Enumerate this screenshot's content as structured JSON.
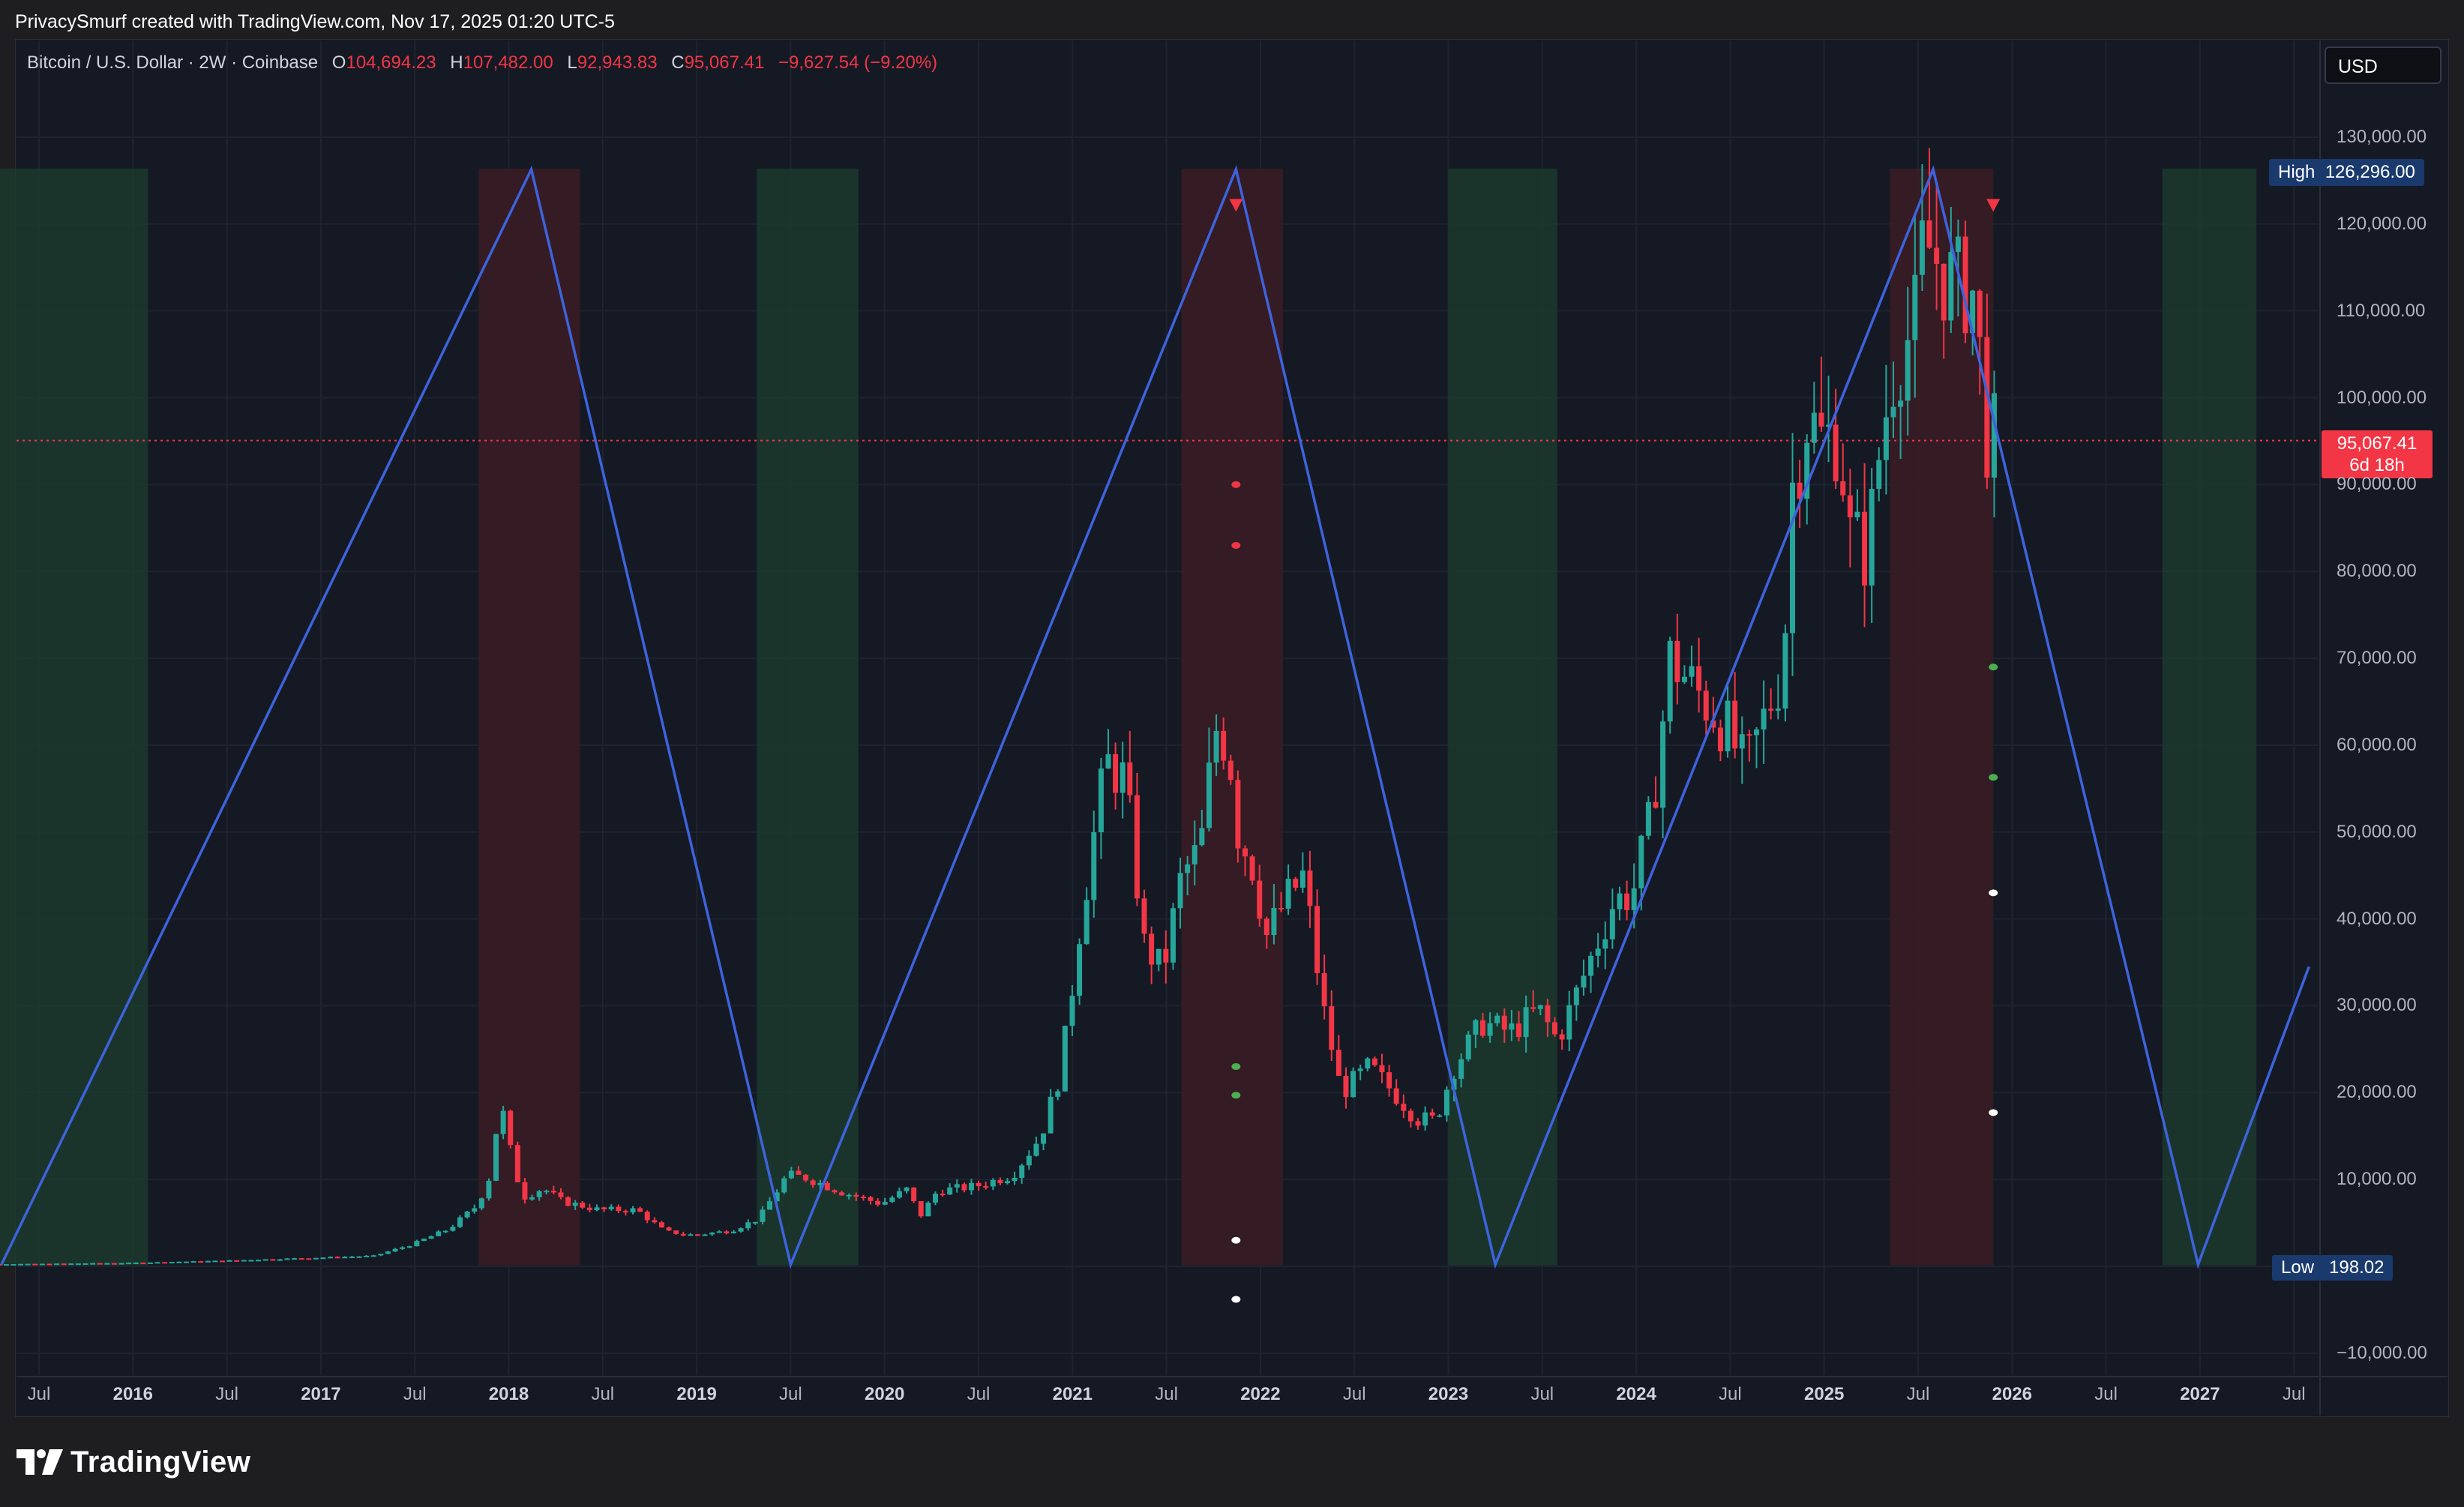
{
  "header": {
    "attribution": "PrivacySmurf created with TradingView.com, Nov 17, 2025 01:20 UTC-5"
  },
  "legend": {
    "symbol": "Bitcoin / U.S. Dollar · 2W · Coinbase",
    "open_key": "O",
    "open": "104,694.23",
    "high_key": "H",
    "high": "107,482.00",
    "low_key": "L",
    "low": "92,943.83",
    "close_key": "C",
    "close": "95,067.41",
    "change": "−9,627.54 (−9.20%)"
  },
  "currency_button": "USD",
  "tags": {
    "high_label": "High",
    "high_value": "126,296.00",
    "low_label": "Low",
    "low_value": "198.02",
    "price_value": "95,067.41",
    "countdown": "6d 18h"
  },
  "footer": {
    "brand": "TradingView"
  },
  "colors": {
    "up": "#26a69a",
    "down": "#f23645",
    "zigzag": "#3d63dd",
    "green_band": "#1b3a2e",
    "red_band": "#3a1c24",
    "background": "#151924"
  },
  "chart_data": {
    "type": "candlestick",
    "y_axis": {
      "range": [
        -10000,
        135000
      ],
      "ticks": [
        "130,000.00",
        "120,000.00",
        "110,000.00",
        "100,000.00",
        "90,000.00",
        "80,000.00",
        "70,000.00",
        "60,000.00",
        "50,000.00",
        "40,000.00",
        "30,000.00",
        "20,000.00",
        "10,000.00",
        "−10,000.00"
      ]
    },
    "x_axis": {
      "ticks": [
        {
          "label": "Jul",
          "t": 2015.5
        },
        {
          "label": "2016",
          "t": 2016.0,
          "year": true
        },
        {
          "label": "Jul",
          "t": 2016.5
        },
        {
          "label": "2017",
          "t": 2017.0,
          "year": true
        },
        {
          "label": "Jul",
          "t": 2017.5
        },
        {
          "label": "2018",
          "t": 2018.0,
          "year": true
        },
        {
          "label": "Jul",
          "t": 2018.5
        },
        {
          "label": "2019",
          "t": 2019.0,
          "year": true
        },
        {
          "label": "Jul",
          "t": 2019.5
        },
        {
          "label": "2020",
          "t": 2020.0,
          "year": true
        },
        {
          "label": "Jul",
          "t": 2020.5
        },
        {
          "label": "2021",
          "t": 2021.0,
          "year": true
        },
        {
          "label": "Jul",
          "t": 2021.5
        },
        {
          "label": "2022",
          "t": 2022.0,
          "year": true
        },
        {
          "label": "Jul",
          "t": 2022.5
        },
        {
          "label": "2023",
          "t": 2023.0,
          "year": true
        },
        {
          "label": "Jul",
          "t": 2023.5
        },
        {
          "label": "2024",
          "t": 2024.0,
          "year": true
        },
        {
          "label": "Jul",
          "t": 2024.5
        },
        {
          "label": "2025",
          "t": 2025.0,
          "year": true
        },
        {
          "label": "Jul",
          "t": 2025.5
        },
        {
          "label": "2026",
          "t": 2026.0,
          "year": true
        },
        {
          "label": "Jul",
          "t": 2026.5
        },
        {
          "label": "2027",
          "t": 2027.0,
          "year": true
        },
        {
          "label": "Jul",
          "t": 2027.5
        }
      ]
    },
    "bands": [
      {
        "kind": "green",
        "from": 2015.05,
        "to": 2016.08
      },
      {
        "kind": "red",
        "from": 2017.84,
        "to": 2018.38
      },
      {
        "kind": "green",
        "from": 2019.32,
        "to": 2019.86
      },
      {
        "kind": "red",
        "from": 2021.58,
        "to": 2022.12
      },
      {
        "kind": "green",
        "from": 2023.0,
        "to": 2023.58
      },
      {
        "kind": "red",
        "from": 2025.35,
        "to": 2025.9
      },
      {
        "kind": "green",
        "from": 2026.8,
        "to": 2027.3
      }
    ],
    "zigzag": [
      [
        2015.3,
        198
      ],
      [
        2018.12,
        126296
      ],
      [
        2019.5,
        198
      ],
      [
        2021.87,
        126296
      ],
      [
        2023.25,
        198
      ],
      [
        2025.58,
        126296
      ],
      [
        2026.99,
        198
      ],
      [
        2027.58,
        34500
      ]
    ],
    "markers": {
      "triangles": [
        [
          2021.87,
          122200
        ],
        [
          2025.9,
          122200
        ]
      ],
      "dots": [
        {
          "color": "#f23645",
          "t": 2021.87,
          "v": 90000
        },
        {
          "color": "#f23645",
          "t": 2021.87,
          "v": 83000
        },
        {
          "color": "#4caf50",
          "t": 2021.87,
          "v": 23000
        },
        {
          "color": "#4caf50",
          "t": 2021.87,
          "v": 19700
        },
        {
          "color": "#ffffff",
          "t": 2021.87,
          "v": 3000
        },
        {
          "color": "#ffffff",
          "t": 2021.87,
          "v": -3800
        },
        {
          "color": "#4caf50",
          "t": 2025.9,
          "v": 69000
        },
        {
          "color": "#4caf50",
          "t": 2025.9,
          "v": 56300
        },
        {
          "color": "#ffffff",
          "t": 2025.9,
          "v": 43000
        },
        {
          "color": "#ffffff",
          "t": 2025.9,
          "v": 17700
        }
      ]
    },
    "price_line": 95067.41,
    "price_anchors": [
      [
        2015.0,
        230
      ],
      [
        2015.5,
        280
      ],
      [
        2016.0,
        400
      ],
      [
        2016.5,
        650
      ],
      [
        2017.0,
        1000
      ],
      [
        2017.3,
        1200
      ],
      [
        2017.5,
        2500
      ],
      [
        2017.7,
        4300
      ],
      [
        2017.85,
        7000
      ],
      [
        2017.93,
        11000
      ],
      [
        2017.97,
        19500
      ],
      [
        2018.05,
        11000
      ],
      [
        2018.1,
        8000
      ],
      [
        2018.2,
        9000
      ],
      [
        2018.3,
        7500
      ],
      [
        2018.5,
        6500
      ],
      [
        2018.7,
        6500
      ],
      [
        2018.85,
        4000
      ],
      [
        2019.0,
        3600
      ],
      [
        2019.2,
        4100
      ],
      [
        2019.35,
        5500
      ],
      [
        2019.5,
        10500
      ],
      [
        2019.6,
        10200
      ],
      [
        2019.8,
        8500
      ],
      [
        2020.0,
        7200
      ],
      [
        2020.15,
        9000
      ],
      [
        2020.2,
        5500
      ],
      [
        2020.3,
        8700
      ],
      [
        2020.5,
        9200
      ],
      [
        2020.7,
        10500
      ],
      [
        2020.85,
        15000
      ],
      [
        2020.95,
        22000
      ],
      [
        2021.0,
        29000
      ],
      [
        2021.05,
        38000
      ],
      [
        2021.12,
        48000
      ],
      [
        2021.2,
        58000
      ],
      [
        2021.3,
        56000
      ],
      [
        2021.4,
        37000
      ],
      [
        2021.5,
        34000
      ],
      [
        2021.6,
        45000
      ],
      [
        2021.7,
        48000
      ],
      [
        2021.78,
        62000
      ],
      [
        2021.85,
        60000
      ],
      [
        2021.9,
        50000
      ],
      [
        2021.98,
        46000
      ],
      [
        2022.05,
        38000
      ],
      [
        2022.15,
        42000
      ],
      [
        2022.25,
        45000
      ],
      [
        2022.35,
        30000
      ],
      [
        2022.45,
        20000
      ],
      [
        2022.6,
        23000
      ],
      [
        2022.75,
        19500
      ],
      [
        2022.85,
        17000
      ],
      [
        2022.95,
        16800
      ],
      [
        2023.05,
        23000
      ],
      [
        2023.2,
        28000
      ],
      [
        2023.35,
        27000
      ],
      [
        2023.5,
        29500
      ],
      [
        2023.6,
        26000
      ],
      [
        2023.75,
        34000
      ],
      [
        2023.9,
        42000
      ],
      [
        2024.0,
        43000
      ],
      [
        2024.1,
        52000
      ],
      [
        2024.2,
        70000
      ],
      [
        2024.35,
        66000
      ],
      [
        2024.5,
        62000
      ],
      [
        2024.6,
        57000
      ],
      [
        2024.7,
        63000
      ],
      [
        2024.8,
        69000
      ],
      [
        2024.85,
        90000
      ],
      [
        2024.93,
        98000
      ],
      [
        2025.0,
        95000
      ],
      [
        2025.1,
        96000
      ],
      [
        2025.15,
        84000
      ],
      [
        2025.25,
        82000
      ],
      [
        2025.32,
        95000
      ],
      [
        2025.4,
        105000
      ],
      [
        2025.5,
        108000
      ],
      [
        2025.55,
        118000
      ],
      [
        2025.65,
        115000
      ],
      [
        2025.72,
        112000
      ],
      [
        2025.8,
        114000
      ],
      [
        2025.85,
        104000
      ],
      [
        2025.89,
        95067
      ]
    ]
  }
}
